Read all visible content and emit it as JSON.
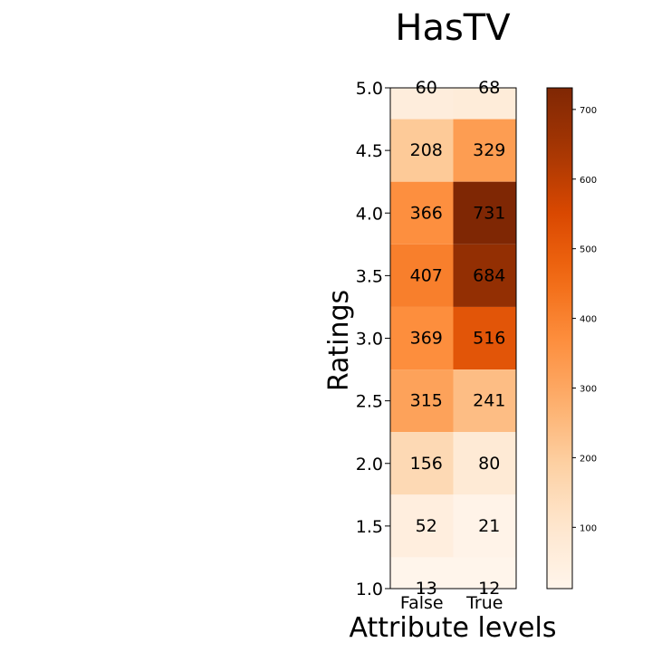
{
  "chart_data": {
    "type": "heatmap",
    "title": "HasTV",
    "xlabel": "Attribute levels",
    "ylabel": "Ratings",
    "x_categories": [
      "False",
      "True"
    ],
    "y_ticks": [
      "1.0",
      "1.5",
      "2.0",
      "2.5",
      "3.0",
      "3.5",
      "4.0",
      "4.5",
      "5.0"
    ],
    "rows": [
      {
        "rating": 5.0,
        "values": [
          60,
          68
        ]
      },
      {
        "rating": 4.5,
        "values": [
          208,
          329
        ]
      },
      {
        "rating": 4.0,
        "values": [
          366,
          731
        ]
      },
      {
        "rating": 3.5,
        "values": [
          407,
          684
        ]
      },
      {
        "rating": 3.0,
        "values": [
          369,
          516
        ]
      },
      {
        "rating": 2.5,
        "values": [
          315,
          241
        ]
      },
      {
        "rating": 2.0,
        "values": [
          156,
          80
        ]
      },
      {
        "rating": 1.5,
        "values": [
          52,
          21
        ]
      },
      {
        "rating": 1.0,
        "values": [
          13,
          12
        ]
      }
    ],
    "colormap": "Oranges",
    "colorbar": {
      "min": 12,
      "max": 731,
      "ticks": [
        "100",
        "200",
        "300",
        "400",
        "500",
        "600",
        "700"
      ]
    },
    "grid": false
  }
}
